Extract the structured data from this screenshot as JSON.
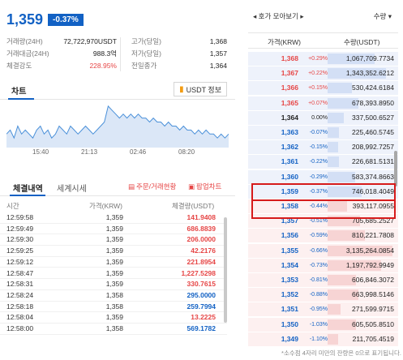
{
  "header": {
    "price": "1,359",
    "change_badge": "-0.37%"
  },
  "stats": [
    {
      "label": "거래량(24H)",
      "value": "72,722,970USDT",
      "label2": "고가(당일)",
      "value2": "1,368"
    },
    {
      "label": "거래대금(24H)",
      "value": "988.3억",
      "label2": "저가(당일)",
      "value2": "1,357"
    },
    {
      "label": "체결강도",
      "value": "228.95%",
      "label2": "전일종가",
      "value2": "1,364"
    }
  ],
  "chart_section": {
    "tab_label": "차트",
    "info_button": "USDT 정보",
    "info_icon": "bar-chart-icon",
    "time_ticks": [
      "15:40",
      "21:13",
      "02:46",
      "08:20"
    ]
  },
  "chart_data": {
    "type": "line",
    "title": "",
    "x": [
      0,
      1,
      2,
      3,
      4,
      5,
      6,
      7,
      8,
      9,
      10,
      11,
      12,
      13,
      14,
      15,
      16,
      17,
      18,
      19,
      20,
      21,
      22,
      23,
      24,
      25,
      26,
      27,
      28,
      29,
      30,
      31,
      32,
      33,
      34,
      35,
      36,
      37,
      38,
      39,
      40,
      41,
      42,
      43,
      44,
      45,
      46,
      47,
      48,
      49,
      50,
      51,
      52,
      53,
      54,
      55,
      56,
      57,
      58,
      59
    ],
    "values": [
      1361,
      1362,
      1360,
      1363,
      1361,
      1362,
      1361,
      1360,
      1362,
      1363,
      1361,
      1362,
      1360,
      1361,
      1363,
      1362,
      1361,
      1363,
      1362,
      1361,
      1362,
      1363,
      1362,
      1361,
      1362,
      1363,
      1364,
      1368,
      1367,
      1366,
      1365,
      1366,
      1365,
      1366,
      1365,
      1366,
      1365,
      1365,
      1364,
      1365,
      1364,
      1364,
      1363,
      1364,
      1363,
      1363,
      1362,
      1363,
      1362,
      1362,
      1361,
      1362,
      1361,
      1362,
      1361,
      1361,
      1360,
      1361,
      1360,
      1361
    ],
    "x_ticks": [
      "15:40",
      "21:13",
      "02:46",
      "08:20"
    ],
    "ylim": [
      1358,
      1369
    ],
    "color": "#4a90d9",
    "fill": "#dbe7f7"
  },
  "trades": {
    "tab_active": "체결내역",
    "tab_inactive": "세계시세",
    "link1": "주문/거래현황",
    "link1_icon": "clipboard-icon",
    "link2": "팝업차트",
    "link2_icon": "popup-icon",
    "columns": {
      "time": "시간",
      "price": "가격(KRW)",
      "volume": "체결량(USDT)"
    },
    "rows": [
      {
        "time": "12:59:58",
        "price": "1,359",
        "volume": "141.9408",
        "color": "red"
      },
      {
        "time": "12:59:49",
        "price": "1,359",
        "volume": "686.8839",
        "color": "red"
      },
      {
        "time": "12:59:30",
        "price": "1,359",
        "volume": "206.0000",
        "color": "red"
      },
      {
        "time": "12:59:25",
        "price": "1,359",
        "volume": "42.2176",
        "color": "red"
      },
      {
        "time": "12:59:12",
        "price": "1,359",
        "volume": "221.8954",
        "color": "red"
      },
      {
        "time": "12:58:47",
        "price": "1,359",
        "volume": "1,227.5298",
        "color": "red"
      },
      {
        "time": "12:58:31",
        "price": "1,359",
        "volume": "330.7615",
        "color": "red"
      },
      {
        "time": "12:58:24",
        "price": "1,358",
        "volume": "295.0000",
        "color": "blue"
      },
      {
        "time": "12:58:18",
        "price": "1,358",
        "volume": "259.7994",
        "color": "blue"
      },
      {
        "time": "12:58:04",
        "price": "1,359",
        "volume": "13.2225",
        "color": "red"
      },
      {
        "time": "12:58:00",
        "price": "1,358",
        "volume": "569.1782",
        "color": "blue"
      }
    ]
  },
  "orderbook": {
    "view_label": "호가 모아보기",
    "qty_label": "수량",
    "columns": {
      "price": "가격(KRW)",
      "qty": "수량(USDT)"
    },
    "rows": [
      {
        "price": "1,368",
        "change": "+0.29%",
        "qty": "1,067,709.7734",
        "side": "ask",
        "color": "red",
        "bar": 0.72
      },
      {
        "price": "1,367",
        "change": "+0.22%",
        "qty": "1,343,352.6212",
        "side": "ask",
        "color": "red",
        "bar": 0.9
      },
      {
        "price": "1,366",
        "change": "+0.15%",
        "qty": "530,424.6184",
        "side": "ask",
        "color": "red",
        "bar": 0.38
      },
      {
        "price": "1,365",
        "change": "+0.07%",
        "qty": "678,393.8950",
        "side": "ask",
        "color": "red",
        "bar": 0.48
      },
      {
        "price": "1,364",
        "change": "0.00%",
        "qty": "337,500.6527",
        "side": "ask",
        "color": "black",
        "bar": 0.25
      },
      {
        "price": "1,363",
        "change": "-0.07%",
        "qty": "225,460.5745",
        "side": "ask",
        "color": "blue",
        "bar": 0.17
      },
      {
        "price": "1,362",
        "change": "-0.15%",
        "qty": "208,992.7257",
        "side": "ask",
        "color": "blue",
        "bar": 0.16
      },
      {
        "price": "1,361",
        "change": "-0.22%",
        "qty": "226,681.5131",
        "side": "ask",
        "color": "blue",
        "bar": 0.17
      },
      {
        "price": "1,360",
        "change": "-0.29%",
        "qty": "583,374.8663",
        "side": "ask",
        "color": "blue",
        "bar": 0.42
      },
      {
        "price": "1,359",
        "change": "-0.37%",
        "qty": "746,018.4049",
        "side": "ask",
        "color": "blue",
        "bar": 0.52
      },
      {
        "price": "1,358",
        "change": "-0.44%",
        "qty": "393,117.0955",
        "side": "bid",
        "color": "blue",
        "bar": 0.3
      },
      {
        "price": "1,357",
        "change": "-0.51%",
        "qty": "705,685.2527",
        "side": "bid",
        "color": "blue",
        "bar": 0.5
      },
      {
        "price": "1,356",
        "change": "-0.59%",
        "qty": "810,221.7808",
        "side": "bid",
        "color": "blue",
        "bar": 0.57
      },
      {
        "price": "1,355",
        "change": "-0.66%",
        "qty": "3,135,264.0854",
        "side": "bid",
        "color": "blue",
        "bar": 1.0
      },
      {
        "price": "1,354",
        "change": "-0.73%",
        "qty": "1,197,792.9949",
        "side": "bid",
        "color": "blue",
        "bar": 0.82
      },
      {
        "price": "1,353",
        "change": "-0.81%",
        "qty": "606,846.3072",
        "side": "bid",
        "color": "blue",
        "bar": 0.44
      },
      {
        "price": "1,352",
        "change": "-0.88%",
        "qty": "663,998.5146",
        "side": "bid",
        "color": "blue",
        "bar": 0.47
      },
      {
        "price": "1,351",
        "change": "-0.95%",
        "qty": "271,599.9715",
        "side": "bid",
        "color": "blue",
        "bar": 0.2
      },
      {
        "price": "1,350",
        "change": "-1.03%",
        "qty": "605,505.8510",
        "side": "bid",
        "color": "blue",
        "bar": 0.44
      },
      {
        "price": "1,349",
        "change": "-1.10%",
        "qty": "211,705.4519",
        "side": "bid",
        "color": "blue",
        "bar": 0.16
      }
    ],
    "footnote": "*소수점 4자리 미만의 잔량은 0으로 표기됩니다."
  }
}
